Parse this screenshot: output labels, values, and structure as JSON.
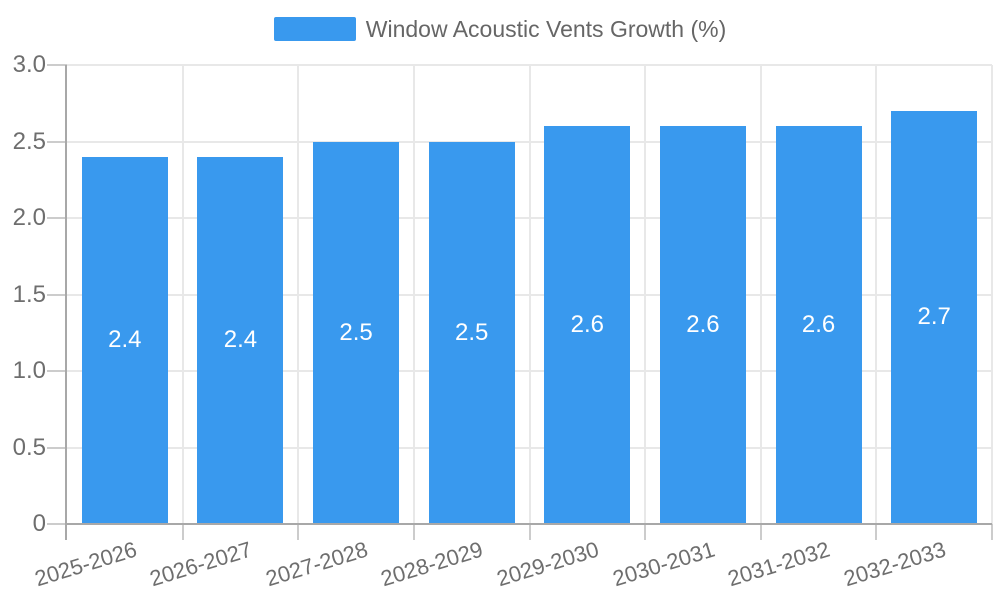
{
  "legend": {
    "label": "Window Acoustic Vents Growth (%)"
  },
  "colors": {
    "bar": "#3999ee",
    "grid": "#e8e8e8",
    "tick": "#cccccc",
    "axis": "#a8a8a8",
    "axis_label": "#6e6e6e",
    "legend_text": "#666666",
    "value_label": "#ffffff",
    "background": "#ffffff"
  },
  "chart_data": {
    "type": "bar",
    "title": "Window Acoustic Vents Growth (%)",
    "categories": [
      "2025-2026",
      "2026-2027",
      "2027-2028",
      "2028-2029",
      "2029-2030",
      "2030-2031",
      "2031-2032",
      "2032-2033"
    ],
    "values": [
      2.4,
      2.4,
      2.5,
      2.5,
      2.6,
      2.6,
      2.6,
      2.7
    ],
    "bar_labels": [
      "2.4",
      "2.4",
      "2.5",
      "2.5",
      "2.6",
      "2.6",
      "2.6",
      "2.7"
    ],
    "xlabel": "",
    "ylabel": "",
    "ylim": [
      0,
      3
    ],
    "yticks": [
      0,
      0.5,
      1,
      1.5,
      2,
      2.5,
      3
    ],
    "ytick_labels": [
      "0",
      "0.5",
      "1.0",
      "1.5",
      "2.0",
      "2.5",
      "3.0"
    ],
    "grid": true,
    "legend_position": "top-center",
    "x_label_rotation_deg": -17
  }
}
